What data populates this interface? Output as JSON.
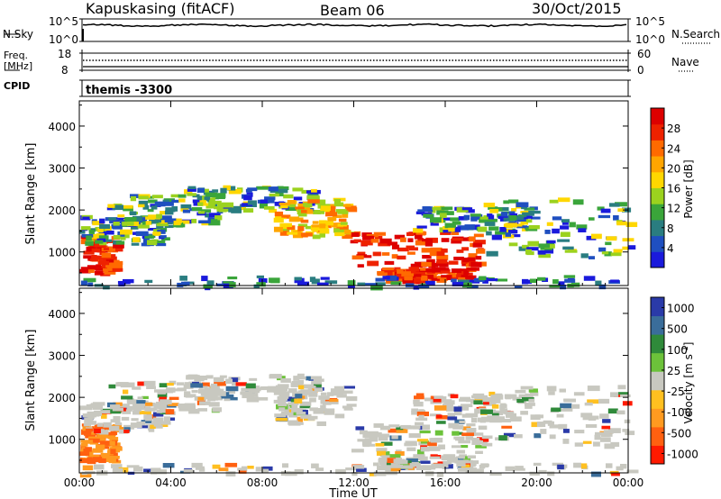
{
  "header": {
    "station": "Kapuskasing (fitACF)",
    "beam": "Beam 06",
    "date": "30/Oct/2015"
  },
  "strip": {
    "nsky_label": "N.Sky",
    "nsearch_label": "N.Search",
    "freq_label": "Freq.",
    "mhz_label": "[MHz]",
    "nave_label": "Nave",
    "cpid_label": "CPID",
    "cpid_value": "themis -3300",
    "noise_ticks": [
      "10^5",
      "10^0"
    ],
    "freq_ticks": [
      "18",
      "8"
    ],
    "nave_ticks": [
      "60",
      "0"
    ]
  },
  "chart_data": [
    {
      "type": "heatmap",
      "title": "Power",
      "xlabel": "Time UT",
      "ylabel": "Slant Range [km]",
      "x_ticks": [
        "00:00",
        "04:00",
        "08:00",
        "12:00",
        "16:00",
        "20:00",
        "00:00"
      ],
      "xlim_hours": [
        0,
        24
      ],
      "ylim": [
        200,
        4600
      ],
      "y_ticks": [
        1000,
        2000,
        3000,
        4000
      ],
      "colorbar": {
        "label": "Power [dB]",
        "ticks": [
          4,
          8,
          12,
          16,
          20,
          24,
          28
        ],
        "colors": [
          "#1a1adc",
          "#1f4fc0",
          "#2a7d80",
          "#3aa53a",
          "#9bd21e",
          "#ffd700",
          "#ffa500",
          "#ff6a00",
          "#ee2200",
          "#dd0000"
        ]
      }
    },
    {
      "type": "heatmap",
      "title": "Velocity",
      "xlabel": "Time UT",
      "ylabel": "Slant Range [km]",
      "x_ticks": [
        "00:00",
        "04:00",
        "08:00",
        "12:00",
        "16:00",
        "20:00",
        "00:00"
      ],
      "xlim_hours": [
        0,
        24
      ],
      "ylim": [
        200,
        4600
      ],
      "y_ticks": [
        1000,
        2000,
        3000,
        4000
      ],
      "colorbar": {
        "label": "Velocity [m s^-1]",
        "ticks": [
          "1000",
          "500",
          "100",
          "25",
          "-25",
          "-100",
          "-500",
          "-1000"
        ],
        "colors": [
          "#2a3aa8",
          "#3a6d9a",
          "#2f8a3a",
          "#6cc23a",
          "#c8c8c0",
          "#ffc020",
          "#ff9a20",
          "#ff6010",
          "#ff1a00"
        ]
      }
    }
  ]
}
